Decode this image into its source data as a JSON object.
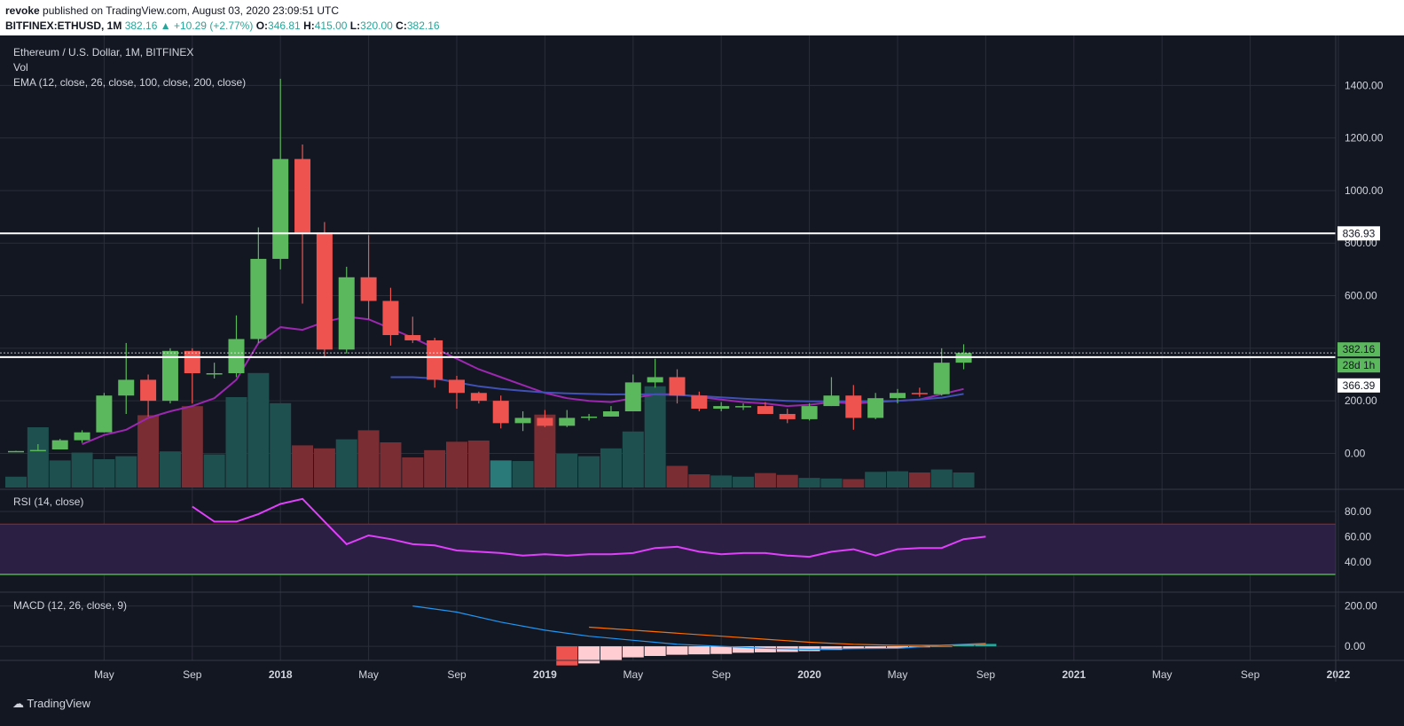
{
  "header": {
    "author": "revoke",
    "published_text": "published on TradingView.com, August 03, 2020 23:09:51 UTC",
    "symbol": "BITFINEX:ETHUSD, 1M",
    "price": "382.16",
    "change": "▲ +10.29 (+2.77%)",
    "o_label": "O:",
    "o_value": "346.81",
    "h_label": "H:",
    "h_value": "415.00",
    "l_label": "L:",
    "l_value": "320.00",
    "c_label": "C:",
    "c_value": "382.16"
  },
  "legend": {
    "title": "Ethereum / U.S. Dollar, 1M, BITFINEX",
    "vol": "Vol",
    "ema": "EMA (12, close, 26, close, 100, close, 200, close)",
    "rsi": "RSI (14, close)",
    "macd": "MACD (12, 26, close, 9)"
  },
  "footer": {
    "brand": "TradingView"
  },
  "colors": {
    "background": "#131722",
    "grid": "#2a2e39",
    "text": "#d1d4dc",
    "bull": "#5cb85c",
    "bear": "#ef5350",
    "vol_bull": "#1f5050",
    "vol_bear": "#7a2e33",
    "vol_hi": "#2a7a7a",
    "ema_fast": "#9c27b0",
    "ema_slow": "#3f51b5",
    "rsi_line": "#e040fb",
    "rsi_band": "#2b1f44",
    "rsi_upper": "#b71c1c",
    "rsi_lower": "#4caf50",
    "macd_line": "#2196f3",
    "signal_line": "#ff6d00"
  },
  "chart_data": [
    {
      "type": "candlestick",
      "title": "Ethereum / U.S. Dollar, 1M, BITFINEX",
      "x_labels": [
        "May",
        "Sep",
        "2018",
        "May",
        "Sep",
        "2019",
        "May",
        "Sep",
        "2020",
        "May",
        "Sep",
        "2021",
        "May",
        "Sep",
        "2022"
      ],
      "y_ticks": [
        0,
        200,
        400,
        600,
        800,
        1000,
        1200,
        1400
      ],
      "ylim": [
        -130,
        1590
      ],
      "horizontal_lines": [
        836.93,
        366.39
      ],
      "price_labels": [
        "836.93",
        "382.16",
        "28d 1h",
        "366.39"
      ],
      "ohlc_months": [
        "2017-01",
        "2017-02",
        "2017-03",
        "2017-04",
        "2017-05",
        "2017-06",
        "2017-07",
        "2017-08",
        "2017-09",
        "2017-10",
        "2017-11",
        "2017-12",
        "2018-01",
        "2018-02",
        "2018-03",
        "2018-04",
        "2018-05",
        "2018-06",
        "2018-07",
        "2018-08",
        "2018-09",
        "2018-10",
        "2018-11",
        "2018-12",
        "2019-01",
        "2019-02",
        "2019-03",
        "2019-04",
        "2019-05",
        "2019-06",
        "2019-07",
        "2019-08",
        "2019-09",
        "2019-10",
        "2019-11",
        "2019-12",
        "2020-01",
        "2020-02",
        "2020-03",
        "2020-04",
        "2020-05",
        "2020-06",
        "2020-07",
        "2020-08"
      ],
      "ohlc": [
        [
          8,
          10,
          8,
          9
        ],
        [
          10,
          35,
          10,
          13
        ],
        [
          15,
          55,
          15,
          50
        ],
        [
          50,
          88,
          40,
          80
        ],
        [
          80,
          230,
          80,
          220
        ],
        [
          220,
          420,
          150,
          280
        ],
        [
          280,
          300,
          140,
          200
        ],
        [
          200,
          400,
          190,
          390
        ],
        [
          390,
          400,
          190,
          305
        ],
        [
          305,
          345,
          285,
          305
        ],
        [
          305,
          525,
          290,
          435
        ],
        [
          435,
          860,
          420,
          740
        ],
        [
          740,
          1425,
          700,
          1120
        ],
        [
          1120,
          1175,
          570,
          840
        ],
        [
          840,
          880,
          365,
          395
        ],
        [
          395,
          710,
          380,
          670
        ],
        [
          670,
          830,
          510,
          580
        ],
        [
          580,
          630,
          410,
          450
        ],
        [
          450,
          520,
          420,
          430
        ],
        [
          430,
          440,
          250,
          280
        ],
        [
          280,
          295,
          170,
          230
        ],
        [
          230,
          235,
          190,
          200
        ],
        [
          200,
          220,
          95,
          115
        ],
        [
          115,
          160,
          85,
          135
        ],
        [
          135,
          165,
          100,
          105
        ],
        [
          105,
          165,
          100,
          135
        ],
        [
          135,
          150,
          125,
          140
        ],
        [
          140,
          180,
          140,
          160
        ],
        [
          160,
          300,
          160,
          270
        ],
        [
          270,
          360,
          250,
          290
        ],
        [
          290,
          320,
          190,
          220
        ],
        [
          220,
          235,
          160,
          170
        ],
        [
          170,
          195,
          160,
          180
        ],
        [
          180,
          190,
          165,
          180
        ],
        [
          180,
          195,
          155,
          150
        ],
        [
          150,
          170,
          115,
          130
        ],
        [
          130,
          190,
          125,
          180
        ],
        [
          180,
          290,
          180,
          220
        ],
        [
          220,
          260,
          90,
          135
        ],
        [
          135,
          230,
          130,
          210
        ],
        [
          210,
          245,
          190,
          230
        ],
        [
          230,
          250,
          215,
          225
        ],
        [
          225,
          400,
          220,
          345
        ],
        [
          345,
          415,
          320,
          382
        ]
      ],
      "volume_relative": [
        0.18,
        1.0,
        0.45,
        0.58,
        0.47,
        0.52,
        1.2,
        0.6,
        1.35,
        0.55,
        1.5,
        1.9,
        1.4,
        0.7,
        0.65,
        0.8,
        0.95,
        0.75,
        0.5,
        0.62,
        0.76,
        0.78,
        0.45,
        0.44,
        1.21,
        0.56,
        0.52,
        0.65,
        0.93,
        1.68,
        0.36,
        0.22,
        0.2,
        0.18,
        0.24,
        0.21,
        0.16,
        0.15,
        0.14,
        0.26,
        0.27,
        0.25,
        0.3,
        0.25
      ],
      "ema_fast": [
        null,
        null,
        null,
        null,
        null,
        null,
        null,
        null,
        null,
        null,
        null,
        null,
        null,
        null,
        null,
        null,
        null,
        null,
        null,
        null,
        null,
        null,
        null,
        null,
        null,
        null,
        null,
        null,
        null,
        null,
        null,
        null,
        null,
        null,
        null,
        null,
        null,
        null,
        null,
        null,
        null,
        null,
        null,
        null
      ],
      "ema_fast_points": [
        [
          3,
          35
        ],
        [
          4,
          70
        ],
        [
          5,
          90
        ],
        [
          6,
          135
        ],
        [
          7,
          160
        ],
        [
          8,
          180
        ],
        [
          9,
          210
        ],
        [
          10,
          280
        ],
        [
          11,
          420
        ],
        [
          12,
          480
        ],
        [
          13,
          470
        ],
        [
          14,
          500
        ],
        [
          15,
          520
        ],
        [
          16,
          510
        ],
        [
          17,
          475
        ],
        [
          18,
          440
        ],
        [
          19,
          400
        ],
        [
          20,
          360
        ],
        [
          21,
          320
        ],
        [
          22,
          290
        ],
        [
          23,
          260
        ],
        [
          24,
          230
        ],
        [
          25,
          210
        ],
        [
          26,
          200
        ],
        [
          27,
          195
        ],
        [
          28,
          210
        ],
        [
          29,
          225
        ],
        [
          30,
          225
        ],
        [
          31,
          215
        ],
        [
          32,
          205
        ],
        [
          33,
          195
        ],
        [
          34,
          190
        ],
        [
          35,
          180
        ],
        [
          36,
          185
        ],
        [
          37,
          195
        ],
        [
          38,
          190
        ],
        [
          39,
          195
        ],
        [
          40,
          200
        ],
        [
          41,
          205
        ],
        [
          42,
          225
        ],
        [
          43,
          245
        ]
      ],
      "ema_slow_points": [
        [
          17,
          290
        ],
        [
          18,
          290
        ],
        [
          19,
          285
        ],
        [
          20,
          270
        ],
        [
          21,
          255
        ],
        [
          22,
          245
        ],
        [
          23,
          238
        ],
        [
          24,
          232
        ],
        [
          25,
          228
        ],
        [
          26,
          226
        ],
        [
          27,
          224
        ],
        [
          28,
          225
        ],
        [
          29,
          224
        ],
        [
          30,
          222
        ],
        [
          31,
          218
        ],
        [
          32,
          213
        ],
        [
          33,
          208
        ],
        [
          34,
          204
        ],
        [
          35,
          200
        ],
        [
          36,
          198
        ],
        [
          37,
          198
        ],
        [
          38,
          198
        ],
        [
          39,
          199
        ],
        [
          40,
          200
        ],
        [
          41,
          205
        ],
        [
          42,
          212
        ],
        [
          43,
          226
        ]
      ]
    },
    {
      "type": "line",
      "title": "RSI (14, close)",
      "y_ticks": [
        40,
        60,
        80
      ],
      "bands": [
        30,
        70
      ],
      "points": [
        [
          8,
          84
        ],
        [
          9,
          72
        ],
        [
          10,
          72
        ],
        [
          11,
          78
        ],
        [
          12,
          86
        ],
        [
          13,
          90
        ],
        [
          14,
          72
        ],
        [
          15,
          54
        ],
        [
          16,
          61
        ],
        [
          17,
          58
        ],
        [
          18,
          54
        ],
        [
          19,
          53
        ],
        [
          20,
          49
        ],
        [
          21,
          48
        ],
        [
          22,
          47
        ],
        [
          23,
          45
        ],
        [
          24,
          46
        ],
        [
          25,
          45
        ],
        [
          26,
          46
        ],
        [
          27,
          46
        ],
        [
          28,
          47
        ],
        [
          29,
          51
        ],
        [
          30,
          52
        ],
        [
          31,
          48
        ],
        [
          32,
          46
        ],
        [
          33,
          47
        ],
        [
          34,
          47
        ],
        [
          35,
          45
        ],
        [
          36,
          44
        ],
        [
          37,
          48
        ],
        [
          38,
          50
        ],
        [
          39,
          45
        ],
        [
          40,
          50
        ],
        [
          41,
          51
        ],
        [
          42,
          51
        ],
        [
          43,
          58
        ],
        [
          44,
          60
        ]
      ]
    },
    {
      "type": "line",
      "title": "MACD (12, 26, close, 9)",
      "y_ticks": [
        0,
        200
      ],
      "macd_points": [
        [
          18,
          200
        ],
        [
          20,
          170
        ],
        [
          22,
          120
        ],
        [
          24,
          80
        ],
        [
          26,
          50
        ],
        [
          28,
          30
        ],
        [
          30,
          10
        ],
        [
          32,
          0
        ],
        [
          34,
          -10
        ],
        [
          36,
          -15
        ],
        [
          38,
          -12
        ],
        [
          40,
          -10
        ],
        [
          42,
          5
        ],
        [
          44,
          15
        ]
      ],
      "signal_points": [
        [
          26,
          95
        ],
        [
          28,
          80
        ],
        [
          30,
          65
        ],
        [
          32,
          50
        ],
        [
          34,
          35
        ],
        [
          36,
          20
        ],
        [
          38,
          10
        ],
        [
          40,
          5
        ],
        [
          42,
          5
        ],
        [
          44,
          10
        ]
      ],
      "histogram": [
        [
          25,
          -95
        ],
        [
          26,
          -85
        ],
        [
          27,
          -70
        ],
        [
          28,
          -55
        ],
        [
          29,
          -48
        ],
        [
          30,
          -42
        ],
        [
          31,
          -40
        ],
        [
          32,
          -38
        ],
        [
          33,
          -32
        ],
        [
          34,
          -30
        ],
        [
          35,
          -28
        ],
        [
          36,
          -24
        ],
        [
          37,
          -18
        ],
        [
          38,
          -12
        ],
        [
          39,
          -10
        ],
        [
          40,
          -8
        ],
        [
          41,
          -5
        ],
        [
          42,
          0
        ],
        [
          43,
          8
        ],
        [
          44,
          12
        ]
      ]
    }
  ]
}
